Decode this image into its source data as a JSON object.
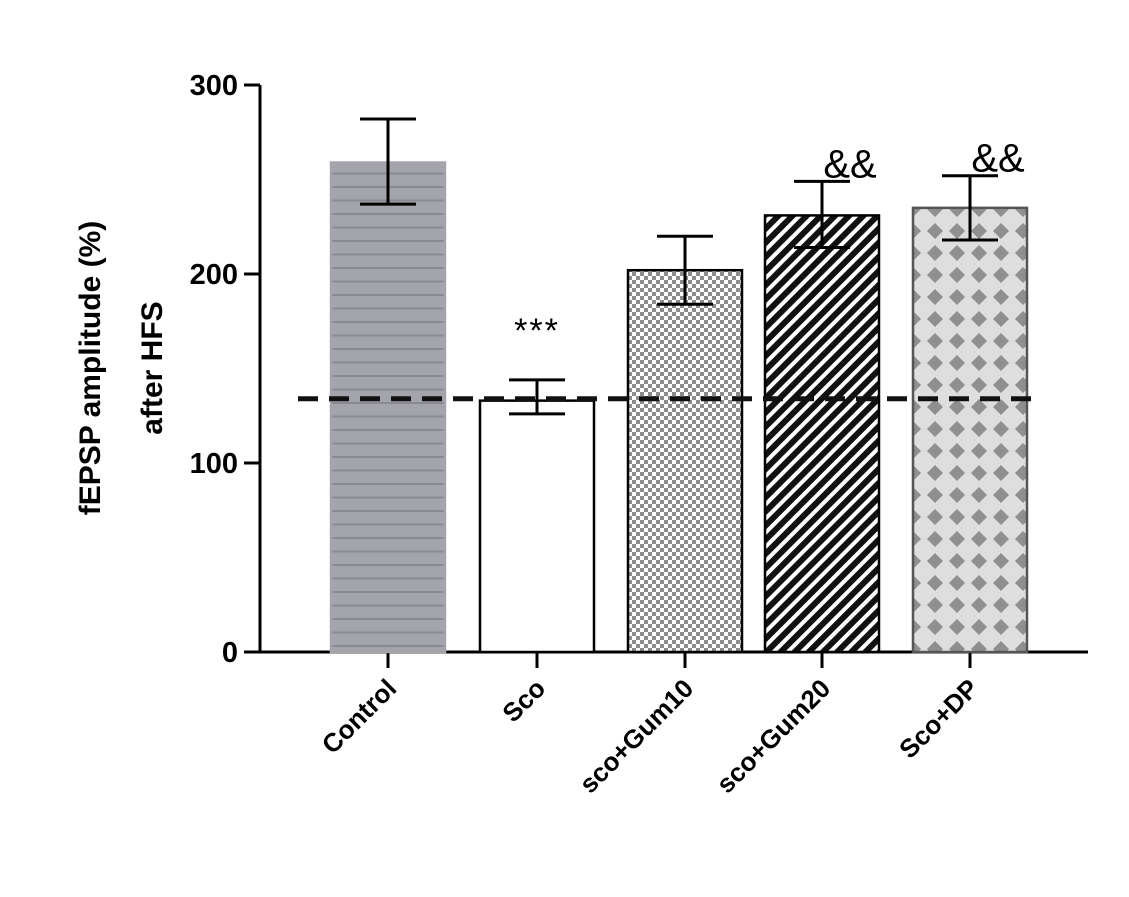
{
  "chart_data": {
    "type": "bar",
    "categories": [
      "Control",
      "Sco",
      "sco+Gum10",
      "sco+Gum20",
      "Sco+DP"
    ],
    "values": [
      259,
      133,
      202,
      231,
      235
    ],
    "errors_upper": [
      282,
      144,
      220,
      249,
      252
    ],
    "errors_lower": [
      237,
      126,
      184,
      214,
      218
    ],
    "ylabel_lines": [
      "fEPSP  amplitude (%)",
      "after HFS"
    ],
    "ylim": [
      0,
      300
    ],
    "yticks": [
      0,
      100,
      200,
      300
    ],
    "reference_line": 134,
    "annotations": [
      "",
      "***",
      "",
      "&&",
      "&&"
    ],
    "patterns": [
      "horizontal-stripes-gray",
      "white",
      "checker",
      "diagonal-stripes",
      "diamond-lattice"
    ],
    "grid": false,
    "legend": "none"
  }
}
